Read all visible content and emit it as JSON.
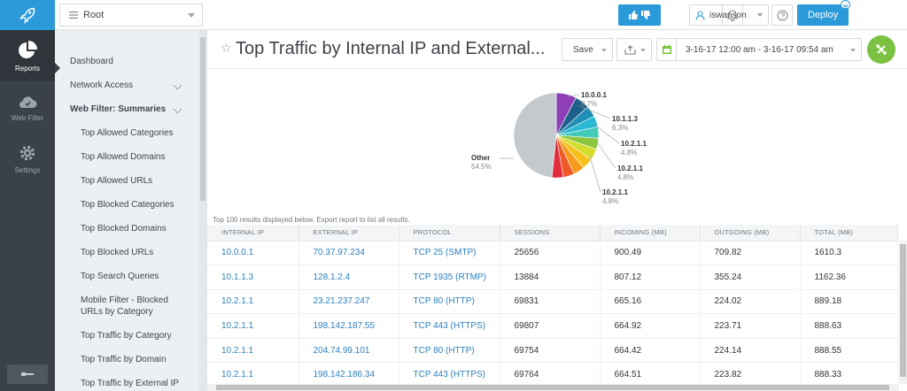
{
  "topbar": {
    "root_label": "Root",
    "user_label": "iswanson",
    "deploy_label": "Deploy"
  },
  "rail": {
    "items": [
      {
        "label": "Reports",
        "icon": "pie-chart-icon",
        "active": true
      },
      {
        "label": "Web Filter",
        "icon": "cloud-icon",
        "active": false
      },
      {
        "label": "Settings",
        "icon": "gear-icon",
        "active": false
      }
    ]
  },
  "nav": {
    "items": [
      {
        "label": "Dashboard"
      },
      {
        "label": "Network Access"
      },
      {
        "label": "Web Filter: Summaries"
      },
      {
        "label": "Top Allowed Categories"
      },
      {
        "label": "Top Allowed Domains"
      },
      {
        "label": "Top Allowed URLs"
      },
      {
        "label": "Top Blocked Categories"
      },
      {
        "label": "Top Blocked Domains"
      },
      {
        "label": "Top Blocked URLs"
      },
      {
        "label": "Top Search Queries"
      },
      {
        "label": "Mobile Filter - Blocked URLs by Category"
      },
      {
        "label": "Top Traffic by Category"
      },
      {
        "label": "Top Traffic by Domain"
      },
      {
        "label": "Top Traffic by External IP"
      }
    ]
  },
  "report": {
    "title": "Top Traffic by Internal IP and External...",
    "save_label": "Save",
    "date_range": "3-16-17 12:00 am - 3-16-17 09:54 am",
    "results_note": "Top 100 results displayed below.  Export report to list all results."
  },
  "chart_data": {
    "type": "pie",
    "slices": [
      {
        "label": "10.0.0.1",
        "value": 8.7,
        "color": "#8e3fb8"
      },
      {
        "label": "10.1.1.3",
        "value": 6.3,
        "color": "#1c5f8a"
      },
      {
        "label": "",
        "value": 4.8,
        "color": "#1f8fb6"
      },
      {
        "label": "10.2.1.1",
        "value": 4.8,
        "color": "#2bb8d4"
      },
      {
        "label": "",
        "value": 4.8,
        "color": "#43c9b8"
      },
      {
        "label": "10.2.1.1",
        "value": 4.8,
        "color": "#8cc63f"
      },
      {
        "label": "",
        "value": 4.8,
        "color": "#d4dc2c"
      },
      {
        "label": "",
        "value": 4.8,
        "color": "#f6c21a"
      },
      {
        "label": "10.2.1.1",
        "value": 4.8,
        "color": "#f59a1c"
      },
      {
        "label": "",
        "value": 4.8,
        "color": "#ef5a26"
      },
      {
        "label": "",
        "value": 4.8,
        "color": "#e32b3a"
      },
      {
        "label": "Other",
        "value": 54.5,
        "color": "#c4c9cd"
      }
    ],
    "labels_shown": [
      {
        "name": "10.0.0.1",
        "pct": "8.7%"
      },
      {
        "name": "10.1.1.3",
        "pct": "6.3%"
      },
      {
        "name": "10.2.1.1",
        "pct": "4.8%"
      },
      {
        "name": "10.2.1.1",
        "pct": "4.8%"
      },
      {
        "name": "10.2.1.1",
        "pct": "4.8%"
      },
      {
        "name": "Other",
        "pct": "54.5%"
      }
    ]
  },
  "table": {
    "headers": [
      "INTERNAL IP",
      "EXTERNAL IP",
      "PROTOCOL",
      "SESSIONS",
      "INCOMING (MB)",
      "OUTGOING (MB)",
      "TOTAL (MB)"
    ],
    "rows": [
      [
        "10.0.0.1",
        "70.37.97.234",
        "TCP 25 (SMTP)",
        "25656",
        "900.49",
        "709.82",
        "1610.3"
      ],
      [
        "10.1.1.3",
        "128.1.2.4",
        "TCP 1935 (RTMP)",
        "13884",
        "807.12",
        "355.24",
        "1162.36"
      ],
      [
        "10.2.1.1",
        "23.21.237.247",
        "TCP 80 (HTTP)",
        "69831",
        "665.16",
        "224.02",
        "889.18"
      ],
      [
        "10.2.1.1",
        "198.142.187.55",
        "TCP 443 (HTTPS)",
        "69807",
        "664.92",
        "223.71",
        "888.63"
      ],
      [
        "10.2.1.1",
        "204.74.99.101",
        "TCP 80 (HTTP)",
        "69754",
        "664.42",
        "224.14",
        "888.55"
      ],
      [
        "10.2.1.1",
        "198.142.186.34",
        "TCP 443 (HTTPS)",
        "69764",
        "664.51",
        "223.82",
        "888.33"
      ]
    ]
  }
}
